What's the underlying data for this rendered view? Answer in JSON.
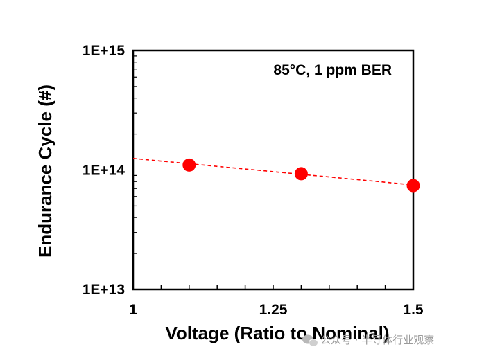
{
  "chart_data": {
    "type": "scatter",
    "title": "",
    "annotation": "85°C, 1 ppm BER",
    "xlabel": "Voltage (Ratio to Nominal)",
    "ylabel": "Endurance Cycle (#)",
    "xlim": [
      1,
      1.5
    ],
    "ylim": [
      10000000000000.0,
      1000000000000000.0
    ],
    "yscale": "log",
    "x_ticks": [
      1,
      1.25,
      1.5
    ],
    "x_tick_labels": [
      "1",
      "1.25",
      "1.5"
    ],
    "y_ticks": [
      10000000000000.0,
      100000000000000.0,
      1000000000000000.0
    ],
    "y_tick_labels": [
      "1E+13",
      "1E+14",
      "1E+15"
    ],
    "grid": false,
    "series": [
      {
        "x": [
          1.1,
          1.3,
          1.5
        ],
        "y": [
          110000000000000.0,
          93000000000000.0,
          74000000000000.0
        ],
        "color": "#ff0000",
        "marker": "circle"
      }
    ],
    "trendline": {
      "x": [
        1.0,
        1.5
      ],
      "y": [
        125000000000000.0,
        75000000000000.0
      ],
      "color": "#ff0000",
      "style": "dashed"
    }
  },
  "watermark": {
    "icon": "wechat-icon",
    "text": "公众号 · 半导体行业观察"
  }
}
